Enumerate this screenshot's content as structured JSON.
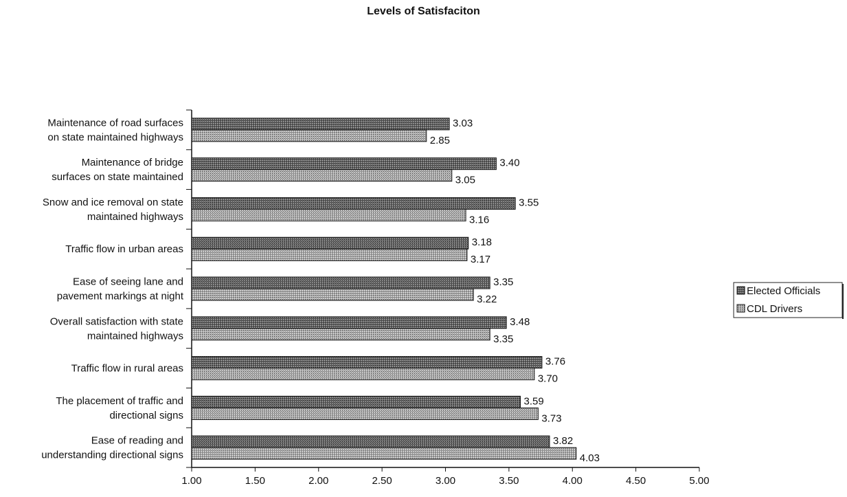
{
  "chart_data": {
    "type": "bar",
    "orientation": "horizontal",
    "title": "Levels of Satisfaciton",
    "xlabel": "",
    "ylabel": "",
    "xlim": [
      1.0,
      5.0
    ],
    "xticks": [
      "1.00",
      "1.50",
      "2.00",
      "2.50",
      "3.00",
      "3.50",
      "4.00",
      "4.50",
      "5.00"
    ],
    "grid": false,
    "legend_position": "right",
    "categories": [
      [
        "Maintenance of road surfaces",
        "on state maintained highways"
      ],
      [
        "Maintenance of bridge",
        "surfaces on state maintained"
      ],
      [
        "Snow and ice removal on state",
        "maintained highways"
      ],
      [
        "Traffic flow in urban areas"
      ],
      [
        "Ease of seeing lane and",
        "pavement markings at night"
      ],
      [
        "Overall satisfaction with state",
        "maintained highways"
      ],
      [
        "Traffic flow in rural areas"
      ],
      [
        "The placement of traffic and",
        "directional signs"
      ],
      [
        "Ease of reading and",
        "understanding directional signs"
      ]
    ],
    "series": [
      {
        "name": "Elected Officials",
        "color": "#555555",
        "values": [
          3.03,
          3.4,
          3.55,
          3.18,
          3.35,
          3.48,
          3.76,
          3.59,
          3.82
        ],
        "labels": [
          "3.03",
          "3.40",
          "3.55",
          "3.18",
          "3.35",
          "3.48",
          "3.76",
          "3.59",
          "3.82"
        ]
      },
      {
        "name": "CDL Drivers",
        "color": "#8a8a8a",
        "values": [
          2.85,
          3.05,
          3.16,
          3.17,
          3.22,
          3.35,
          3.7,
          3.73,
          4.03
        ],
        "labels": [
          "2.85",
          "3.05",
          "3.16",
          "3.17",
          "3.22",
          "3.35",
          "3.70",
          "3.73",
          "4.03"
        ]
      }
    ]
  }
}
